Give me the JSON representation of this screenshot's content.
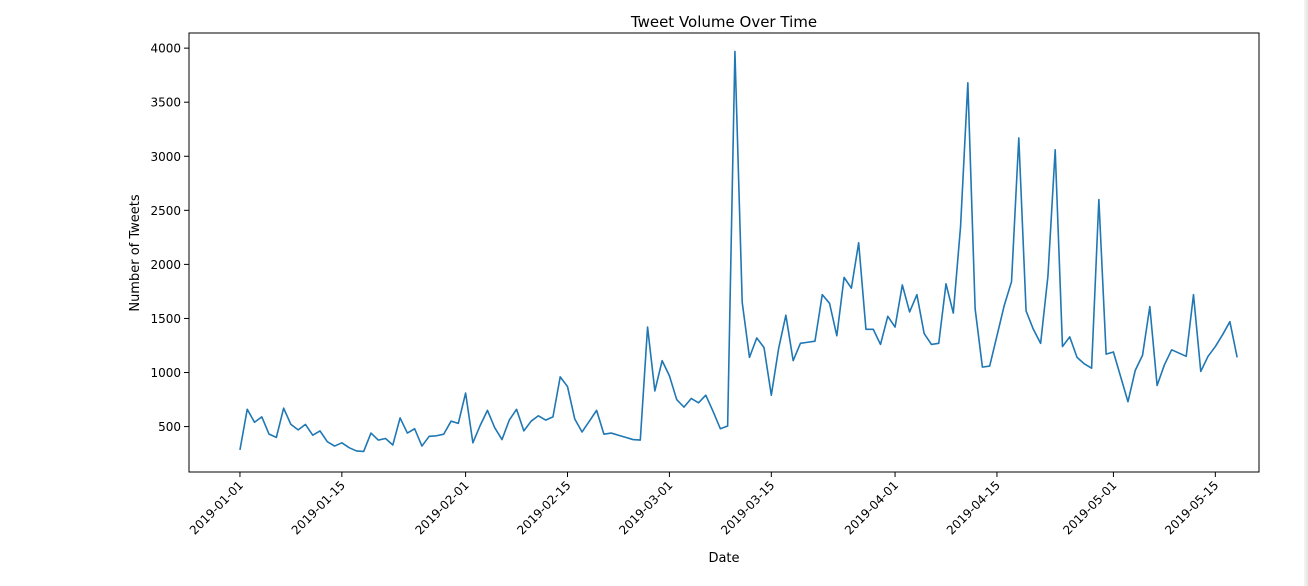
{
  "chart_data": {
    "type": "line",
    "title": "Tweet Volume Over Time",
    "xlabel": "Date",
    "ylabel": "Number of Tweets",
    "grid": false,
    "line_color": "#1f77b4",
    "xlim": [
      "2018-12-25",
      "2019-05-21"
    ],
    "ylim": [
      80,
      4140
    ],
    "x_ticks": [
      "2019-01-01",
      "2019-01-15",
      "2019-02-01",
      "2019-02-15",
      "2019-03-01",
      "2019-03-15",
      "2019-04-01",
      "2019-04-15",
      "2019-05-01",
      "2019-05-15"
    ],
    "y_ticks": [
      500,
      1000,
      1500,
      2000,
      2500,
      3000,
      3500,
      4000
    ],
    "series": [
      {
        "x_start": "2019-01-01",
        "x_step": "1 day",
        "values": [
          285,
          660,
          540,
          590,
          430,
          400,
          670,
          520,
          470,
          520,
          420,
          460,
          360,
          320,
          350,
          305,
          275,
          270,
          440,
          375,
          390,
          330,
          580,
          440,
          480,
          320,
          410,
          415,
          430,
          550,
          530,
          810,
          350,
          510,
          650,
          490,
          380,
          560,
          660,
          460,
          550,
          600,
          560,
          590,
          960,
          870,
          570,
          450,
          550,
          650,
          430,
          440,
          420,
          400,
          380,
          375,
          1420,
          830,
          1110,
          970,
          750,
          680,
          760,
          720,
          790,
          640,
          480,
          505,
          3970,
          1650,
          1140,
          1320,
          1230,
          790,
          1220,
          1530,
          1110,
          1270,
          1280,
          1290,
          1720,
          1640,
          1340,
          1880,
          1780,
          2200,
          1400,
          1400,
          1260,
          1520,
          1420,
          1810,
          1560,
          1720,
          1360,
          1260,
          1270,
          1820,
          1550,
          2350,
          3680,
          1590,
          1050,
          1060,
          1340,
          1620,
          1840,
          3170,
          1570,
          1400,
          1270,
          1890,
          3060,
          1240,
          1330,
          1140,
          1080,
          1040,
          2600,
          1170,
          1190,
          960,
          730,
          1020,
          1160,
          1610,
          880,
          1070,
          1210,
          1180,
          1150,
          1720,
          1010,
          1150,
          1240,
          1350,
          1470,
          1140
        ]
      }
    ]
  }
}
